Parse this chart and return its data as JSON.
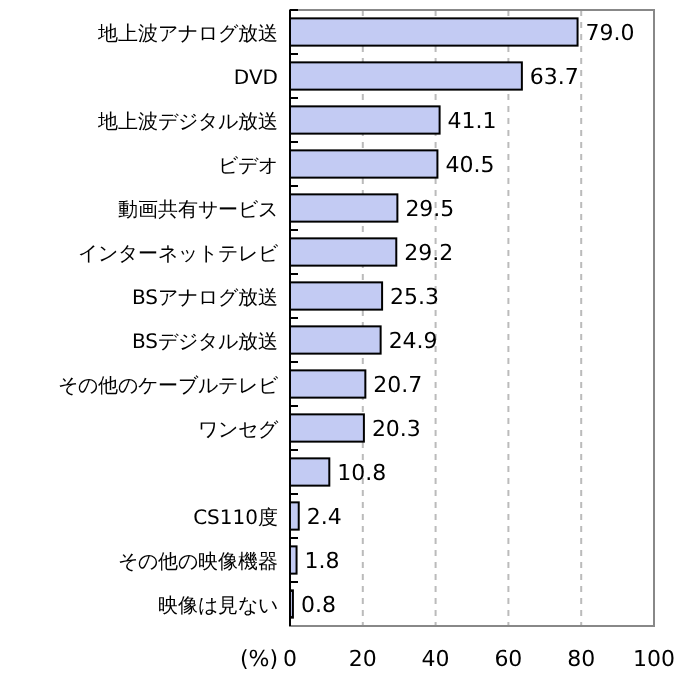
{
  "chart_data": {
    "type": "bar",
    "orientation": "horizontal",
    "xlabel": "(%)",
    "categories": [
      "地上波アナログ放送",
      "DVD",
      "地上波デジタル放送",
      "ビデオ",
      "動画共有サービス",
      "インターネットテレビ",
      "BSアナログ放送",
      "BSデジタル放送",
      "その他のケーブルテレビ",
      "ワンセグ",
      null,
      "CS110度",
      "その他の映像機器",
      "映像は見ない"
    ],
    "values": [
      79.0,
      63.7,
      41.1,
      40.5,
      29.5,
      29.2,
      25.3,
      24.9,
      20.7,
      20.3,
      10.8,
      2.4,
      1.8,
      0.8
    ],
    "value_labels": [
      "79.0",
      "63.7",
      "41.1",
      "40.5",
      "29.5",
      "29.2",
      "25.3",
      "24.9",
      "20.7",
      "20.3",
      "10.8",
      "2.4",
      "1.8",
      "0.8"
    ],
    "color": "#c3cbf3",
    "xlim": [
      0,
      100
    ],
    "xticks": [
      0,
      20,
      40,
      60,
      80,
      100
    ],
    "grid": "x"
  }
}
